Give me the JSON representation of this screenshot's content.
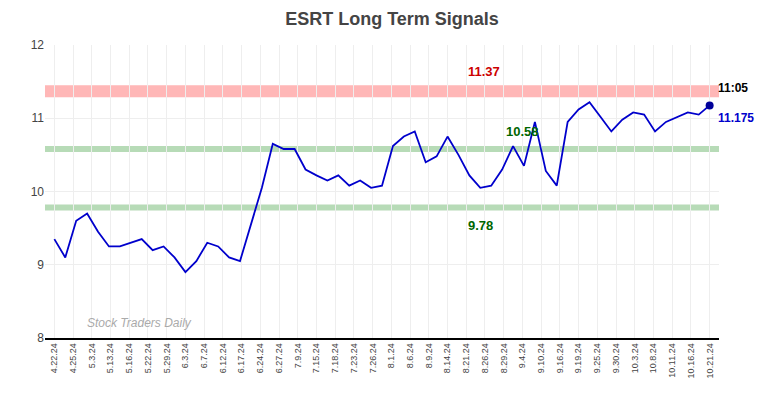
{
  "chart_data": {
    "type": "line",
    "title": "ESRT Long Term Signals",
    "x": [
      0,
      0.5833333333333334,
      1.1666666666666667,
      1.75,
      2.3333333333333335,
      2.916666666666667,
      3.5,
      4.083333333333333,
      4.666666666666667,
      5.25,
      5.833333333333333,
      6.416666666666667,
      7,
      7.583333333333333,
      8.166666666666666,
      8.75,
      9.333333333333334,
      9.916666666666666,
      10.5,
      11.083333333333334,
      11.666666666666666,
      12.25,
      12.833333333333334,
      13.416666666666666,
      14,
      14.583333333333334,
      15.166666666666666,
      15.75,
      16.333333333333332,
      16.916666666666668,
      17.5,
      18.083333333333332,
      18.666666666666668,
      19.25,
      19.833333333333332,
      20.416666666666668,
      21,
      21.583333333333332,
      22.166666666666668,
      22.75,
      23.333333333333332,
      23.916666666666668,
      24.5,
      25.083333333333332,
      25.666666666666668,
      26.25,
      26.833333333333332,
      27.416666666666668,
      28,
      28.583333333333332,
      29.166666666666668,
      29.75,
      30.333333333333332,
      30.916666666666668,
      31.5,
      32.083333333333336,
      32.666666666666664,
      33.25,
      33.833333333333336,
      34.416666666666664,
      35
    ],
    "xlim": [
      -0.5,
      35.5
    ],
    "xticks": [
      {
        "value": 0,
        "label": "4.22.24"
      },
      {
        "value": 1,
        "label": "4.25.24"
      },
      {
        "value": 2,
        "label": "5.3.24"
      },
      {
        "value": 3,
        "label": "5.13.24"
      },
      {
        "value": 4,
        "label": "5.16.24"
      },
      {
        "value": 5,
        "label": "5.22.24"
      },
      {
        "value": 6,
        "label": "5.29.24"
      },
      {
        "value": 7,
        "label": "6.3.24"
      },
      {
        "value": 8,
        "label": "6.7.24"
      },
      {
        "value": 9,
        "label": "6.12.24"
      },
      {
        "value": 10,
        "label": "6.17.24"
      },
      {
        "value": 11,
        "label": "6.24.24"
      },
      {
        "value": 12,
        "label": "6.27.24"
      },
      {
        "value": 13,
        "label": "7.9.24"
      },
      {
        "value": 14,
        "label": "7.15.24"
      },
      {
        "value": 15,
        "label": "7.18.24"
      },
      {
        "value": 16,
        "label": "7.23.24"
      },
      {
        "value": 17,
        "label": "7.26.24"
      },
      {
        "value": 18,
        "label": "8.1.24"
      },
      {
        "value": 19,
        "label": "8.6.24"
      },
      {
        "value": 20,
        "label": "8.9.24"
      },
      {
        "value": 21,
        "label": "8.14.24"
      },
      {
        "value": 22,
        "label": "8.21.24"
      },
      {
        "value": 23,
        "label": "8.26.24"
      },
      {
        "value": 24,
        "label": "8.29.24"
      },
      {
        "value": 25,
        "label": "9.4.24"
      },
      {
        "value": 26,
        "label": "9.10.24"
      },
      {
        "value": 27,
        "label": "9.16.24"
      },
      {
        "value": 28,
        "label": "9.19.24"
      },
      {
        "value": 29,
        "label": "9.25.24"
      },
      {
        "value": 30,
        "label": "9.30.24"
      },
      {
        "value": 31,
        "label": "10.3.24"
      },
      {
        "value": 32,
        "label": "10.8.24"
      },
      {
        "value": 33,
        "label": "10.11.24"
      },
      {
        "value": 34,
        "label": "10.16.24"
      },
      {
        "value": 35,
        "label": "10.21.24"
      }
    ],
    "ylim": [
      8,
      12
    ],
    "yticks": [
      8,
      9,
      10,
      11,
      12
    ],
    "grid": true,
    "series": [
      {
        "color": "#0000cc",
        "values": [
          9.35,
          9.1,
          9.6,
          9.7,
          9.45,
          9.25,
          9.25,
          9.3,
          9.35,
          9.2,
          9.25,
          9.1,
          8.9,
          9.05,
          9.3,
          9.25,
          9.1,
          9.05,
          9.55,
          10.05,
          10.65,
          10.58,
          10.58,
          10.3,
          10.22,
          10.15,
          10.22,
          10.08,
          10.15,
          10.05,
          10.08,
          10.62,
          10.75,
          10.82,
          10.4,
          10.48,
          10.75,
          10.5,
          10.22,
          10.05,
          10.08,
          10.3,
          10.62,
          10.35,
          10.95,
          10.28,
          10.08,
          10.95,
          11.12,
          11.22,
          11.02,
          10.82,
          10.98,
          11.08,
          11.05,
          10.82,
          10.95,
          11.02,
          11.08,
          11.05,
          11.175
        ]
      }
    ],
    "reference_lines": [
      {
        "y": 11.37,
        "color": "#ff9999",
        "label": "11.37",
        "label_color": "#cc0000"
      },
      {
        "y": 10.58,
        "color": "#99cc99",
        "label": "10.58",
        "label_color": "#006600"
      },
      {
        "y": 9.78,
        "color": "#99cc99",
        "label": "9.78",
        "label_color": "#006600"
      }
    ],
    "end_point": {
      "color": "#000099",
      "labels": [
        {
          "text": "11:05",
          "color": "#000000"
        },
        {
          "text": "11.175",
          "color": "#0000cc"
        }
      ]
    },
    "watermark": {
      "text": "Stock Traders Daily",
      "color": "#aaaaaa"
    }
  }
}
